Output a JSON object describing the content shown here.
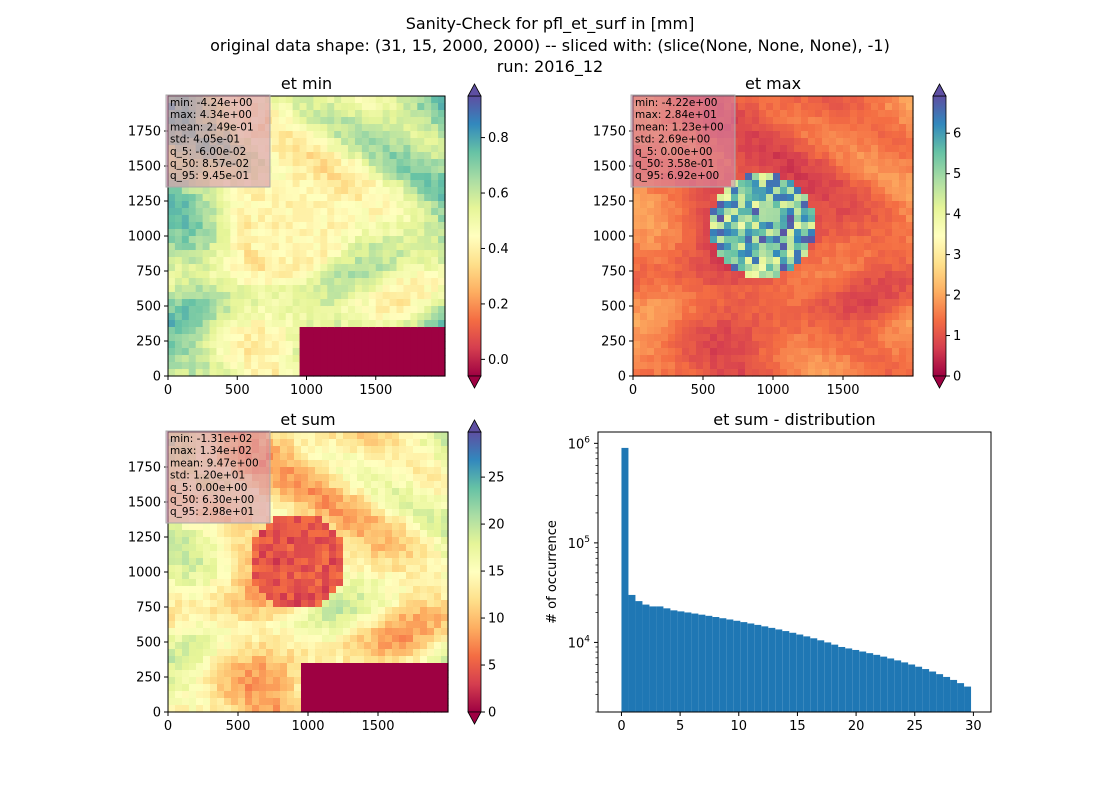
{
  "figure": {
    "title_lines": [
      "Sanity-Check for pfl_et_surf in [mm]",
      "original data shape: (31, 15, 2000, 2000) -- sliced with: (slice(None, None, None), -1)",
      "run: 2016_12"
    ]
  },
  "colormap": "Spectral",
  "chart_data": [
    {
      "type": "heatmap",
      "title": "et min",
      "xlim": [
        0,
        2000
      ],
      "ylim": [
        0,
        2000
      ],
      "xticks": [
        0,
        500,
        1000,
        1500
      ],
      "yticks": [
        0,
        250,
        500,
        750,
        1000,
        1250,
        1500,
        1750
      ],
      "colorbar": {
        "vmin": -0.06,
        "vmax": 0.95,
        "ticks": [
          0.0,
          0.2,
          0.4,
          0.6,
          0.8
        ],
        "tick_labels": [
          "0.0",
          "0.2",
          "0.4",
          "0.6",
          "0.8"
        ],
        "extend": "both"
      },
      "stats": [
        "min: -4.24e+00",
        "max: 4.34e+00",
        "mean: 2.49e-01",
        "std: 4.05e-01",
        "q_5: -6.00e-02",
        "q_50: 8.57e-02",
        "q_95: 9.45e-01"
      ]
    },
    {
      "type": "heatmap",
      "title": "et max",
      "xlim": [
        0,
        2000
      ],
      "ylim": [
        0,
        2000
      ],
      "xticks": [
        0,
        500,
        1000,
        1500
      ],
      "yticks": [
        0,
        250,
        500,
        750,
        1000,
        1250,
        1500,
        1750
      ],
      "colorbar": {
        "vmin": 0.0,
        "vmax": 6.92,
        "ticks": [
          0,
          1,
          2,
          3,
          4,
          5,
          6
        ],
        "tick_labels": [
          "0",
          "1",
          "2",
          "3",
          "4",
          "5",
          "6"
        ],
        "extend": "both"
      },
      "stats": [
        "min: -4.22e+00",
        "max: 2.84e+01",
        "mean: 1.23e+00",
        "std: 2.69e+00",
        "q_5: 0.00e+00",
        "q_50: 3.58e-01",
        "q_95: 6.92e+00"
      ]
    },
    {
      "type": "heatmap",
      "title": "et sum",
      "xlim": [
        0,
        2000
      ],
      "ylim": [
        0,
        2000
      ],
      "xticks": [
        0,
        500,
        1000,
        1500
      ],
      "yticks": [
        0,
        250,
        500,
        750,
        1000,
        1250,
        1500,
        1750
      ],
      "colorbar": {
        "vmin": 0.0,
        "vmax": 29.8,
        "ticks": [
          0,
          5,
          10,
          15,
          20,
          25
        ],
        "tick_labels": [
          "0",
          "5",
          "10",
          "15",
          "20",
          "25"
        ],
        "extend": "both"
      },
      "stats": [
        "min: -1.31e+02",
        "max: 1.34e+02",
        "mean: 9.47e+00",
        "std: 1.20e+01",
        "q_5: 0.00e+00",
        "q_50: 6.30e+00",
        "q_95: 2.98e+01"
      ]
    },
    {
      "type": "bar",
      "title": "et sum - distribution",
      "ylabel": "# of occurrence",
      "y_scale": "log",
      "xlim": [
        -2,
        31.5
      ],
      "ylim": [
        2000,
        1300000
      ],
      "xticks": [
        0,
        5,
        10,
        15,
        20,
        25,
        30
      ],
      "yticks": [
        10000,
        100000,
        1000000
      ],
      "ytick_labels": [
        {
          "base": "10",
          "exp": "4"
        },
        {
          "base": "10",
          "exp": "5"
        },
        {
          "base": "10",
          "exp": "6"
        }
      ],
      "bin_range": [
        0,
        29.8
      ],
      "bar_color": "#1f77b4",
      "approx_counts": [
        900000,
        30000,
        26000,
        24000,
        23000,
        23000,
        22000,
        21000,
        20500,
        20000,
        19500,
        19000,
        18500,
        18000,
        17500,
        17000,
        16500,
        16000,
        15500,
        15000,
        14500,
        14000,
        13500,
        13000,
        12500,
        12000,
        11500,
        11000,
        10500,
        10000,
        9500,
        9000,
        8700,
        8400,
        8100,
        7800,
        7500,
        7200,
        6900,
        6600,
        6300,
        6000,
        5700,
        5400,
        5100,
        4800,
        4500,
        4200,
        3900,
        3600
      ]
    }
  ]
}
